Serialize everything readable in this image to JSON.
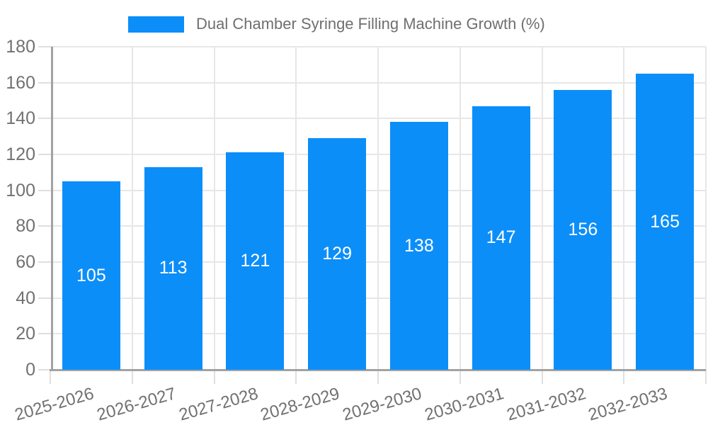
{
  "legend": {
    "position": "top",
    "label": "Dual Chamber Syringe Filling Machine Growth (%)"
  },
  "chart_data": {
    "type": "bar",
    "title": "Dual Chamber Syringe Filling Machine Growth (%)",
    "categories": [
      "2025-2026",
      "2026-2027",
      "2027-2028",
      "2028-2029",
      "2029-2030",
      "2030-2031",
      "2031-2032",
      "2032-2033"
    ],
    "values": [
      105,
      113,
      121,
      129,
      138,
      147,
      156,
      165
    ],
    "value_labels": [
      "105",
      "113",
      "121",
      "129",
      "138",
      "147",
      "156",
      "165"
    ],
    "xlabel": "",
    "ylabel": "",
    "ylim": [
      0,
      180
    ],
    "ytick_step": 20,
    "ytick_labels": [
      "0",
      "20",
      "40",
      "60",
      "80",
      "100",
      "120",
      "140",
      "160",
      "180"
    ],
    "grid": true,
    "legend_position": "top center",
    "value_labels_inside_bars": true,
    "x_label_rotation_deg": -16,
    "colors": {
      "bar": "#0C8EF9",
      "value_label": "#FFFFFF",
      "axis_text": "#717171",
      "legend_text": "#6F6F6F",
      "grid_line": "#E7E7E7",
      "tick_line": "#DFDFDF",
      "axis_line": "#A2A2A2",
      "background": "#FFFFFF"
    }
  }
}
